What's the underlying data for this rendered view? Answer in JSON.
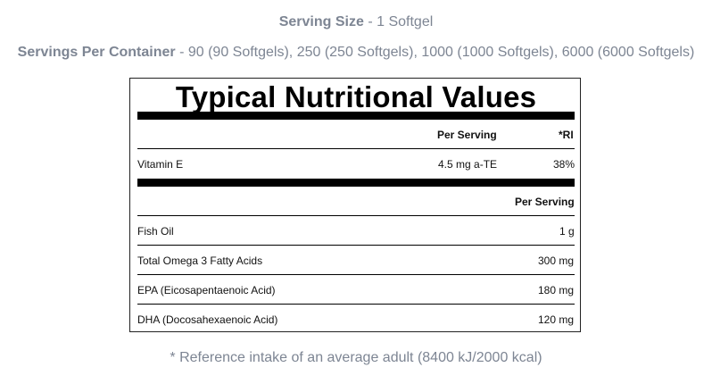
{
  "header": {
    "serving_size_label": "Serving Size",
    "serving_size_value": " - 1 Softgel",
    "servings_per_container_label": "Servings Per Container",
    "servings_per_container_value": " - 90 (90 Softgels), 250 (250 Softgels), 1000 (1000 Softgels), 6000 (6000 Softgels)"
  },
  "panel": {
    "title": "Typical Nutritional Values",
    "vitamins_table": {
      "headers": [
        "Per Serving",
        "*RI"
      ],
      "rows": [
        {
          "name": "Vitamin E",
          "per_serving": "4.5 mg a-TE",
          "ri": "38%"
        }
      ]
    },
    "other_table": {
      "header": "Per Serving",
      "rows": [
        {
          "name": "Fish Oil",
          "per_serving": "1 g"
        },
        {
          "name": "Total Omega 3 Fatty Acids",
          "per_serving": "300 mg"
        },
        {
          "name": "EPA (Eicosapentaenoic Acid)",
          "per_serving": "180 mg"
        },
        {
          "name": "DHA (Docosahexaenoic Acid)",
          "per_serving": "120 mg"
        }
      ]
    }
  },
  "footnote": "* Reference intake of an average adult (8400 kJ/2000 kcal)"
}
